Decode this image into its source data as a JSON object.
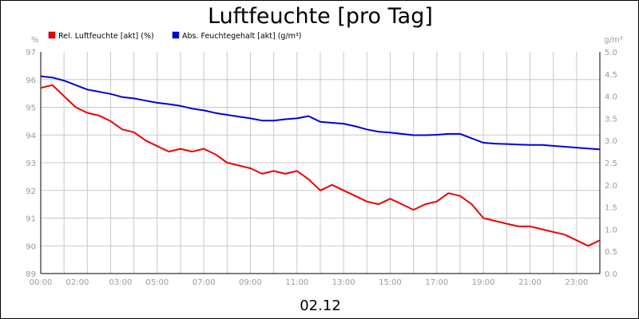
{
  "chart_data": {
    "type": "line",
    "title": "Luftfeuchte [pro Tag]",
    "date_label": "02.12",
    "y_left": {
      "unit": "%",
      "range": [
        89,
        97
      ],
      "ticks": [
        "97",
        "96",
        "95",
        "94",
        "93",
        "92",
        "91",
        "90",
        "89"
      ]
    },
    "y_right": {
      "unit": "g/m³",
      "range": [
        0.0,
        5.0
      ],
      "ticks": [
        "5.0",
        "4.5",
        "4.0",
        "3.5",
        "3.0",
        "2.5",
        "2.0",
        "1.5",
        "1.0",
        "0.5",
        "0.0"
      ]
    },
    "x_range_hours": [
      0,
      24
    ],
    "x_tick_labels": [
      "00:00",
      "02:00",
      "03:00",
      "05:00",
      "07:00",
      "09:00",
      "11:00",
      "13:00",
      "15:00",
      "17:00",
      "19:00",
      "21:00",
      "23:00"
    ],
    "grid": true,
    "legend_position": "top-left",
    "series": [
      {
        "name": "Rel. Luftfeuchte [akt] (%)",
        "color": "#ee0000",
        "axis": "left",
        "x": [
          0,
          0.5,
          1,
          1.5,
          2,
          2.5,
          3,
          3.5,
          4,
          4.5,
          5,
          5.5,
          6,
          6.5,
          7,
          7.5,
          8,
          8.5,
          9,
          9.5,
          10,
          10.5,
          11,
          11.5,
          12,
          12.5,
          13,
          13.5,
          14,
          14.5,
          15,
          15.5,
          16,
          16.5,
          17,
          17.5,
          18,
          18.5,
          19,
          19.5,
          20,
          20.5,
          21,
          21.5,
          22,
          22.5,
          23,
          23.5,
          24
        ],
        "y": [
          95.7,
          95.8,
          95.4,
          95.0,
          94.8,
          94.7,
          94.5,
          94.2,
          94.1,
          93.8,
          93.6,
          93.4,
          93.5,
          93.4,
          93.5,
          93.3,
          93.0,
          92.9,
          92.8,
          92.6,
          92.7,
          92.6,
          92.7,
          92.4,
          92.0,
          92.2,
          92.0,
          91.8,
          91.6,
          91.5,
          91.7,
          91.5,
          91.3,
          91.5,
          91.6,
          91.9,
          91.8,
          91.5,
          91.0,
          90.9,
          90.8,
          90.7,
          90.7,
          90.6,
          90.5,
          90.4,
          90.2,
          90.0,
          90.2
        ]
      },
      {
        "name": "Abs. Feuchtegehalt [akt] (g/m³)",
        "color": "#0000dd",
        "axis": "right",
        "x": [
          0,
          0.5,
          1,
          1.5,
          2,
          2.5,
          3,
          3.5,
          4,
          4.5,
          5,
          5.5,
          6,
          6.5,
          7,
          7.5,
          8,
          8.5,
          9,
          9.5,
          10,
          10.5,
          11,
          11.5,
          12,
          12.5,
          13,
          13.5,
          14,
          14.5,
          15,
          15.5,
          16,
          16.5,
          17,
          17.5,
          18,
          18.5,
          19,
          19.5,
          20,
          20.5,
          21,
          21.5,
          22,
          22.5,
          23,
          23.5,
          24
        ],
        "y": [
          4.45,
          4.42,
          4.35,
          4.25,
          4.15,
          4.1,
          4.05,
          3.98,
          3.95,
          3.9,
          3.85,
          3.82,
          3.78,
          3.72,
          3.68,
          3.62,
          3.58,
          3.54,
          3.5,
          3.45,
          3.45,
          3.48,
          3.5,
          3.55,
          3.42,
          3.4,
          3.38,
          3.32,
          3.25,
          3.2,
          3.18,
          3.15,
          3.12,
          3.12,
          3.13,
          3.15,
          3.15,
          3.05,
          2.95,
          2.93,
          2.92,
          2.91,
          2.9,
          2.9,
          2.88,
          2.86,
          2.84,
          2.82,
          2.8
        ]
      }
    ]
  }
}
